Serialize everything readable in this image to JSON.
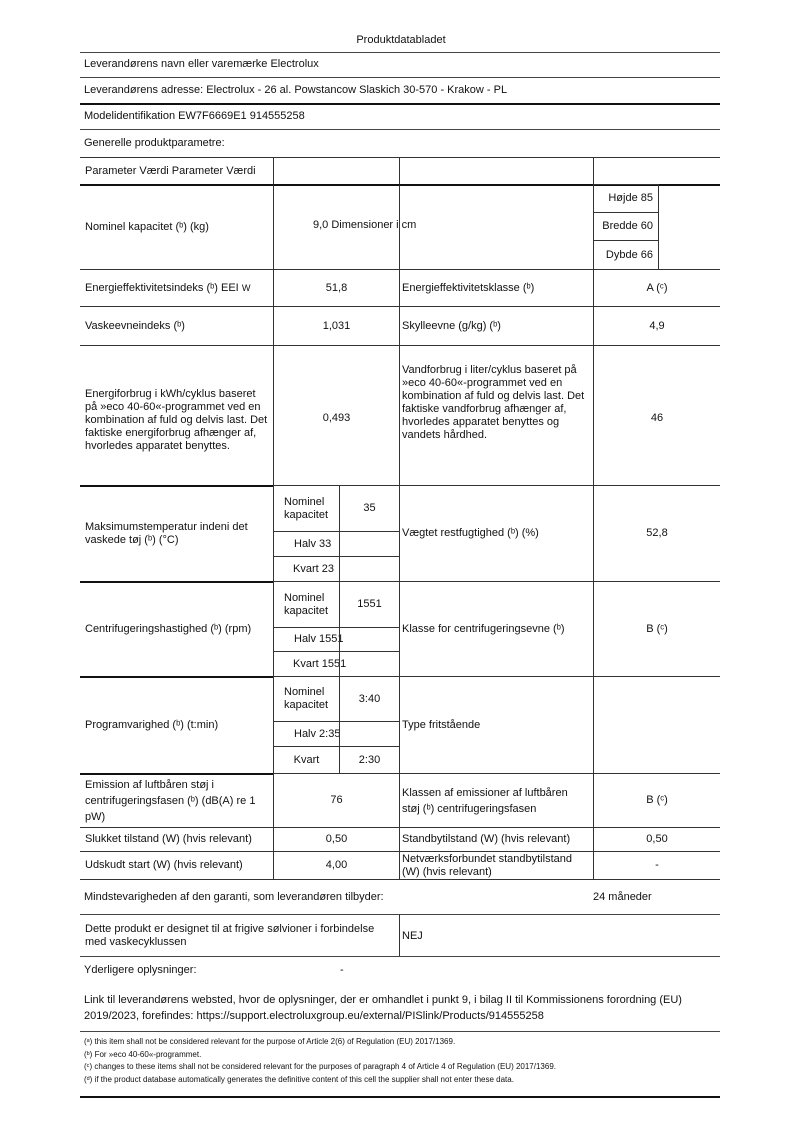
{
  "title": "Produktdatabladet",
  "supplier_name": "Leverandørens navn eller varemærke Electrolux",
  "supplier_address": "Leverandørens adresse: Electrolux - 26 al. Powstancow Slaskich 30-570 - Krakow - PL",
  "model_id": "Modelidentifikation EW7F6669E1 914555258",
  "general_heading": "Generelle produktparametre:",
  "table": {
    "header": "Parameter Værdi Parameter Værdi",
    "capacity_label": "Nominel kapacitet (ᵇ) (kg)",
    "capacity_value": "9,0 Dimensioner i cm",
    "height": "Højde 85",
    "width": "Bredde 60",
    "depth": "Dybde 66",
    "eei_label": "Energieffektivitetsindeks (ᵇ) EEI",
    "eei_sub": "W",
    "eei_value": "51,8",
    "energy_class_label": "Energieffektivitetsklasse (ᵇ)",
    "energy_class_value": "A (ᶜ)",
    "wash_label": "Vaskeevneindeks (ᵇ)",
    "wash_value": "1,031",
    "rinse_label": "Skylleevne (g/kg) (ᵇ)",
    "rinse_value": "4,9",
    "energy_cons_label": "Energiforbrug i kWh/cyklus baseret på »eco 40-60«-programmet ved en kombination af fuld og delvis last. Det faktiske energiforbrug afhænger af, hvorledes apparatet benyttes.",
    "energy_cons_value": "0,493",
    "water_cons_label": "Vandforbrug i liter/cyklus baseret på »eco 40-60«-programmet ved en kombination af fuld og delvis last. Det faktiske vandforbrug afhænger af, hvorledes apparatet benyttes og vandets hårdhed.",
    "water_cons_value": "46",
    "temp_label": "Maksimumstemperatur indeni det vaskede tøj (ᵇ) (°C)",
    "temp_nominal_label": "Nominel kapacitet",
    "temp_nominal_value": "35",
    "temp_half": "Halv 33",
    "temp_quarter": "Kvart 23",
    "moisture_label": "Vægtet restfugtighed (ᵇ) (%)",
    "moisture_value": "52,8",
    "spin_label": "Centrifugeringshastighed (ᵇ) (rpm)",
    "spin_nominal_label": "Nominel kapacitet",
    "spin_nominal_value": "1551",
    "spin_half": "Halv 1551",
    "spin_quarter": "Kvart 1551",
    "spin_class_label": "Klasse for centrifugeringsevne (ᵇ)",
    "spin_class_value": "B (ᶜ)",
    "duration_label": "Programvarighed (ᵇ) (t:min)",
    "duration_nominal_label": "Nominel kapacitet",
    "duration_nominal_value": "3:40",
    "duration_half": "Halv 2:35",
    "duration_quarter_label": "Kvart",
    "duration_quarter_value": "2:30",
    "type_label": "Type fritstående",
    "noise_label": "Emission af luftbåren støj i centrifugeringsfasen (ᵇ) (dB(A) re 1 pW)",
    "noise_value": "76",
    "noise_class_label": "Klassen af emissioner af luftbåren støj (ᵇ) centrifugeringsfasen",
    "noise_class_value": "B (ᶜ)",
    "off_label": "Slukket tilstand (W) (hvis relevant)",
    "off_value": "0,50",
    "standby_label": "Standbytilstand (W) (hvis relevant)",
    "standby_value": "0,50",
    "delay_label": "Udskudt start (W) (hvis relevant)",
    "delay_value": "4,00",
    "network_label": "Netværksforbundet standbytilstand (W) (hvis relevant)",
    "network_value": "-"
  },
  "warranty_label": "Mindstevarigheden af den garanti, som leverandøren tilbyder:",
  "warranty_value": "24 måneder",
  "silver_label": "Dette produkt er designet til at frigive sølvioner i forbindelse med vaskecyklussen",
  "silver_value": "NEJ",
  "additional_label": "Yderligere oplysninger:",
  "additional_value": "-",
  "link_text": "Link til leverandørens websted, hvor de oplysninger, der er omhandlet i punkt 9, i bilag II til Kommissionens forordning (EU) 2019/2023, forefindes: https://support.electroluxgroup.eu/external/PISlink/Products/914555258",
  "footnotes": [
    "(ᵃ) this item shall not be considered relevant for the purpose of Article 2(6) of Regulation (EU) 2017/1369.",
    "(ᵇ) For »eco 40-60«-programmet.",
    "(ᶜ) changes to these items shall not be considered relevant for the purposes of paragraph 4 of Article 4 of Regulation (EU) 2017/1369.",
    "(ᵈ) if the product database automatically generates the definitive content of this cell the supplier shall not enter these data."
  ]
}
